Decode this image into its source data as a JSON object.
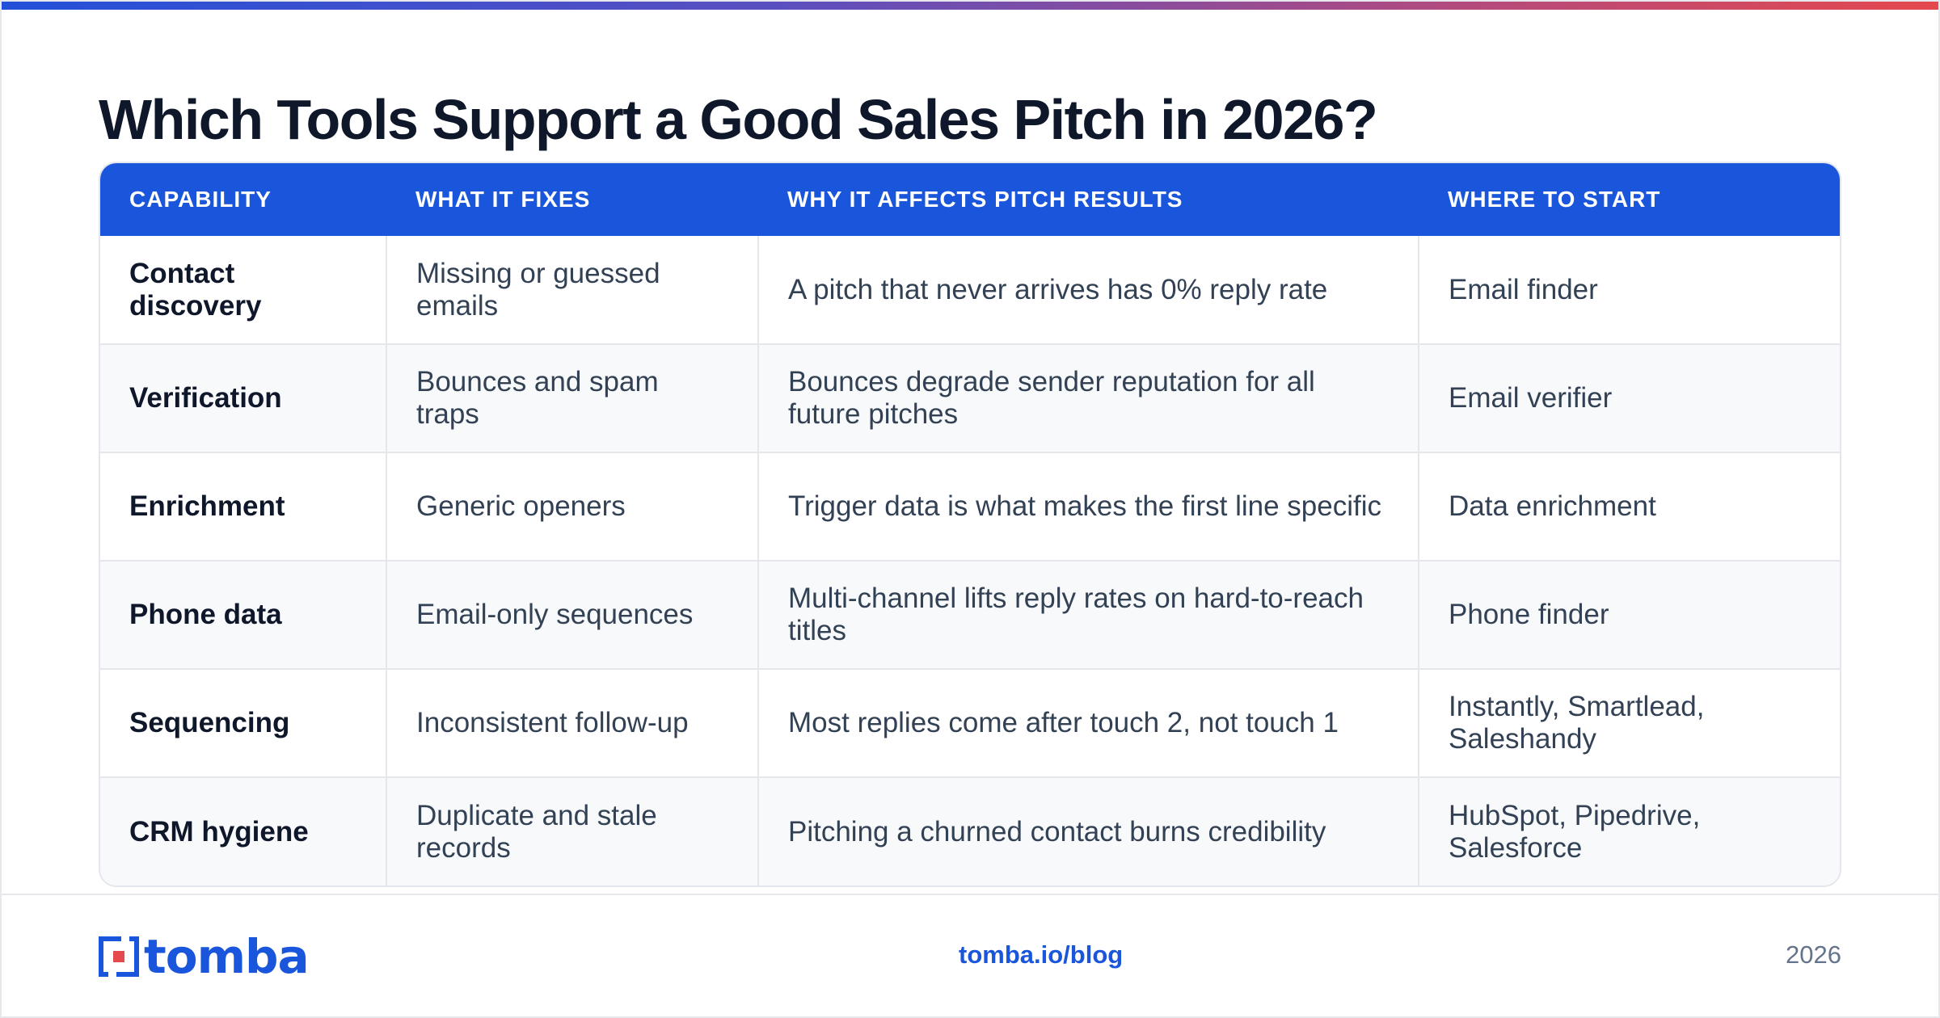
{
  "title": "Which Tools Support a Good Sales Pitch in 2026?",
  "table": {
    "headers": [
      "CAPABILITY",
      "WHAT IT FIXES",
      "WHY IT AFFECTS PITCH RESULTS",
      "WHERE TO START"
    ],
    "rows": [
      [
        "Contact discovery",
        "Missing or guessed emails",
        "A pitch that never arrives has 0% reply rate",
        "Email finder"
      ],
      [
        "Verification",
        "Bounces and spam traps",
        "Bounces degrade sender reputation for all future pitches",
        "Email verifier"
      ],
      [
        "Enrichment",
        "Generic openers",
        "Trigger data is what makes the first line specific",
        "Data enrichment"
      ],
      [
        "Phone data",
        "Email-only sequences",
        "Multi-channel lifts reply rates on hard-to-reach titles",
        "Phone finder"
      ],
      [
        "Sequencing",
        "Inconsistent follow-up",
        "Most replies come after touch 2, not touch 1",
        "Instantly, Smartlead, Saleshandy"
      ],
      [
        "CRM hygiene",
        "Duplicate and stale records",
        "Pitching a churned contact burns credibility",
        "HubSpot, Pipedrive, Salesforce"
      ]
    ]
  },
  "footer": {
    "logo_text": "tomba",
    "url": "tomba.io/blog",
    "year": "2026"
  },
  "colors": {
    "accent": "#1a56db",
    "logo_red": "#e5484d",
    "title": "#0f172a"
  }
}
